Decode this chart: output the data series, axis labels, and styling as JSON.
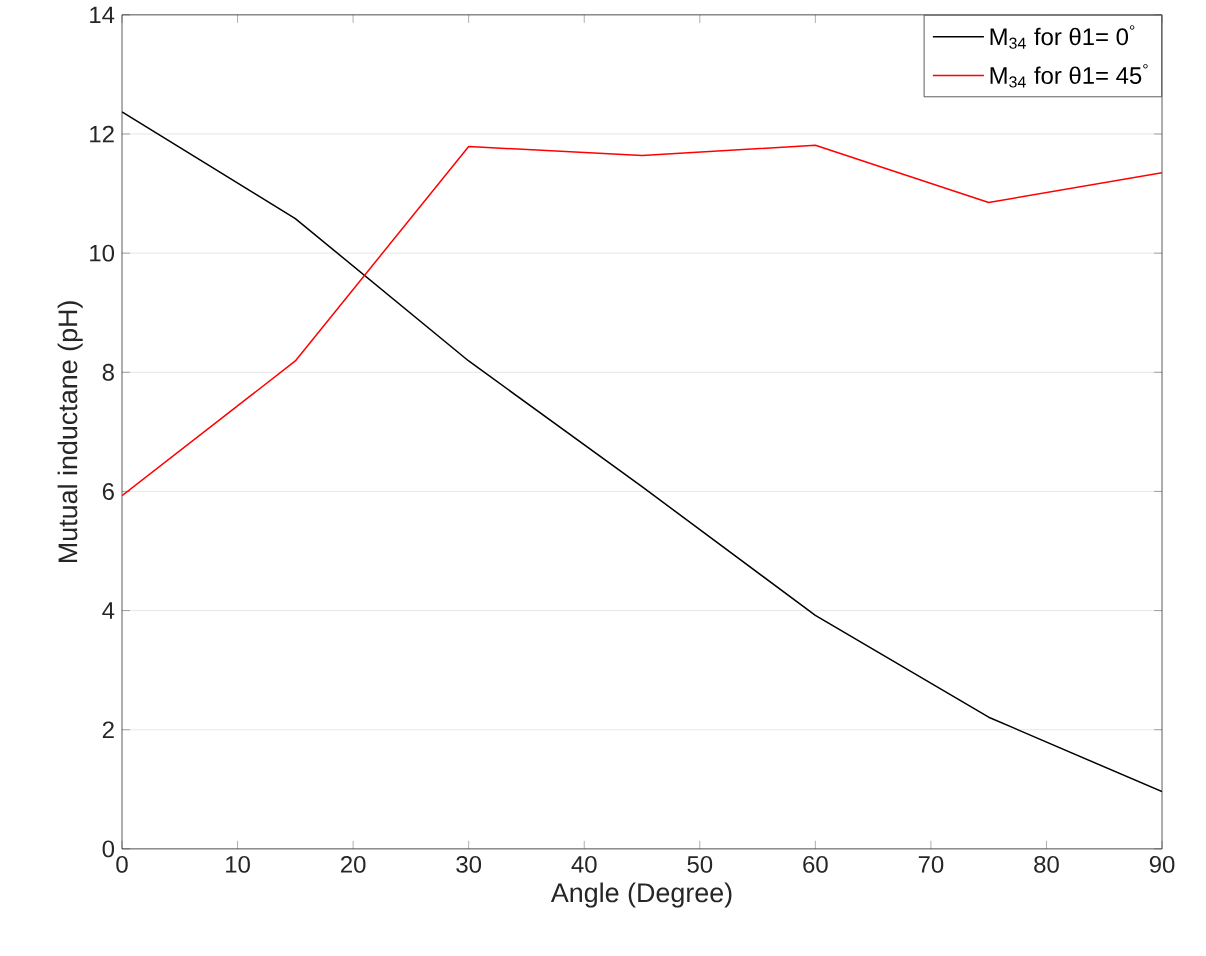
{
  "chart_data": {
    "type": "line",
    "xlabel": "Angle (Degree)",
    "ylabel": "Mutual inductane (pH)",
    "x": [
      0,
      15,
      30,
      45,
      60,
      75,
      90
    ],
    "series": [
      {
        "name": "M$_{34}$  for θ1= 0$^{°}$",
        "color": "#000000",
        "values": [
          12.37,
          10.58,
          8.19,
          6.08,
          3.92,
          2.21,
          0.96
        ]
      },
      {
        "name": "M$_{34}$  for θ1= 45$^{°}$",
        "color": "#ff0000",
        "values": [
          5.93,
          8.19,
          11.79,
          11.64,
          11.81,
          10.85,
          11.35
        ]
      }
    ],
    "xlim": [
      0,
      90
    ],
    "ylim": [
      0,
      14
    ],
    "xticks": [
      0,
      10,
      20,
      30,
      40,
      50,
      60,
      70,
      80,
      90
    ],
    "yticks": [
      0,
      2,
      4,
      6,
      8,
      10,
      12,
      14
    ],
    "grid": "y",
    "legend": "top right",
    "line_style": "solid",
    "marker": "none"
  }
}
